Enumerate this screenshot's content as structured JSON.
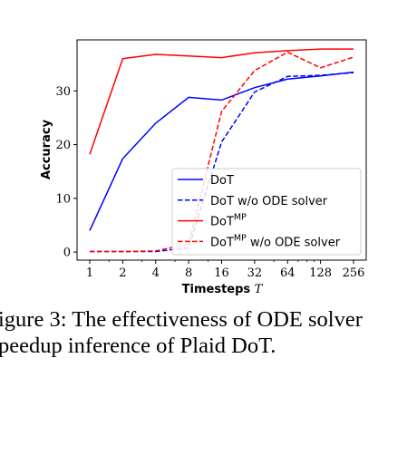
{
  "chart_data": {
    "type": "line",
    "title": "",
    "xlabel": "Timesteps",
    "xlabel_symbol": "T",
    "ylabel": "Accuracy",
    "x": [
      1,
      2,
      4,
      8,
      16,
      32,
      64,
      128,
      256
    ],
    "xticks": [
      "1",
      "2",
      "4",
      "8",
      "16",
      "32",
      "64",
      "128",
      "256"
    ],
    "xscale": "log2",
    "yticks": [
      "0",
      "10",
      "20",
      "30"
    ],
    "ylim": [
      -1.5,
      39.5
    ],
    "grid": false,
    "legend_position": "lower-right",
    "series": [
      {
        "name": "DoT",
        "name_sup": "",
        "name_suffix": "",
        "color": "#0000ff",
        "dash": "solid",
        "values": [
          4.0,
          17.4,
          24.0,
          28.8,
          28.3,
          30.6,
          32.2,
          32.8,
          33.5
        ]
      },
      {
        "name": "DoT",
        "name_sup": "",
        "name_suffix": " w/o ODE solver",
        "color": "#0000ff",
        "dash": "dashed",
        "values": [
          0.1,
          0.1,
          0.1,
          0.8,
          20.5,
          29.8,
          32.7,
          32.9,
          33.4
        ]
      },
      {
        "name": "DoT",
        "name_sup": "MP",
        "name_suffix": "",
        "color": "#ff0000",
        "dash": "solid",
        "values": [
          18.2,
          36.0,
          36.8,
          36.5,
          36.2,
          37.1,
          37.5,
          37.8,
          37.8
        ]
      },
      {
        "name": "DoT",
        "name_sup": "MP",
        "name_suffix": " w/o ODE solver",
        "color": "#ff0000",
        "dash": "dashed",
        "values": [
          0.1,
          0.1,
          0.2,
          1.5,
          26.2,
          33.8,
          37.2,
          34.3,
          36.3
        ]
      }
    ]
  },
  "caption": {
    "line1": "igure 3: The effectiveness of ODE solver",
    "line2": "peedup inference of Plaid DoT."
  }
}
